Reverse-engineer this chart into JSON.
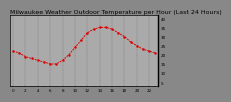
{
  "title": "Milwaukee Weather Outdoor Temperature per Hour (Last 24 Hours)",
  "hours": [
    0,
    1,
    2,
    3,
    4,
    5,
    6,
    7,
    8,
    9,
    10,
    11,
    12,
    13,
    14,
    15,
    16,
    17,
    18,
    19,
    20,
    21,
    22,
    23
  ],
  "temps": [
    22,
    21,
    19,
    18,
    17,
    16,
    15,
    15,
    17,
    20,
    24,
    28,
    32,
    34,
    35,
    35,
    34,
    32,
    30,
    27,
    25,
    23,
    22,
    21
  ],
  "line_color": "#dd0000",
  "bg_color": "#888888",
  "plot_bg": "#aaaaaa",
  "grid_color": "#555555",
  "ytick_labels": [
    "5",
    "10",
    "15",
    "20",
    "25",
    "30",
    "35",
    "40"
  ],
  "ytick_vals": [
    5,
    10,
    15,
    20,
    25,
    30,
    35,
    40
  ],
  "ylim": [
    3,
    42
  ],
  "xlim": [
    -0.5,
    23.5
  ],
  "title_fontsize": 4.5,
  "tick_fontsize": 3.0,
  "marker_size": 1.5,
  "line_width": 0.7
}
